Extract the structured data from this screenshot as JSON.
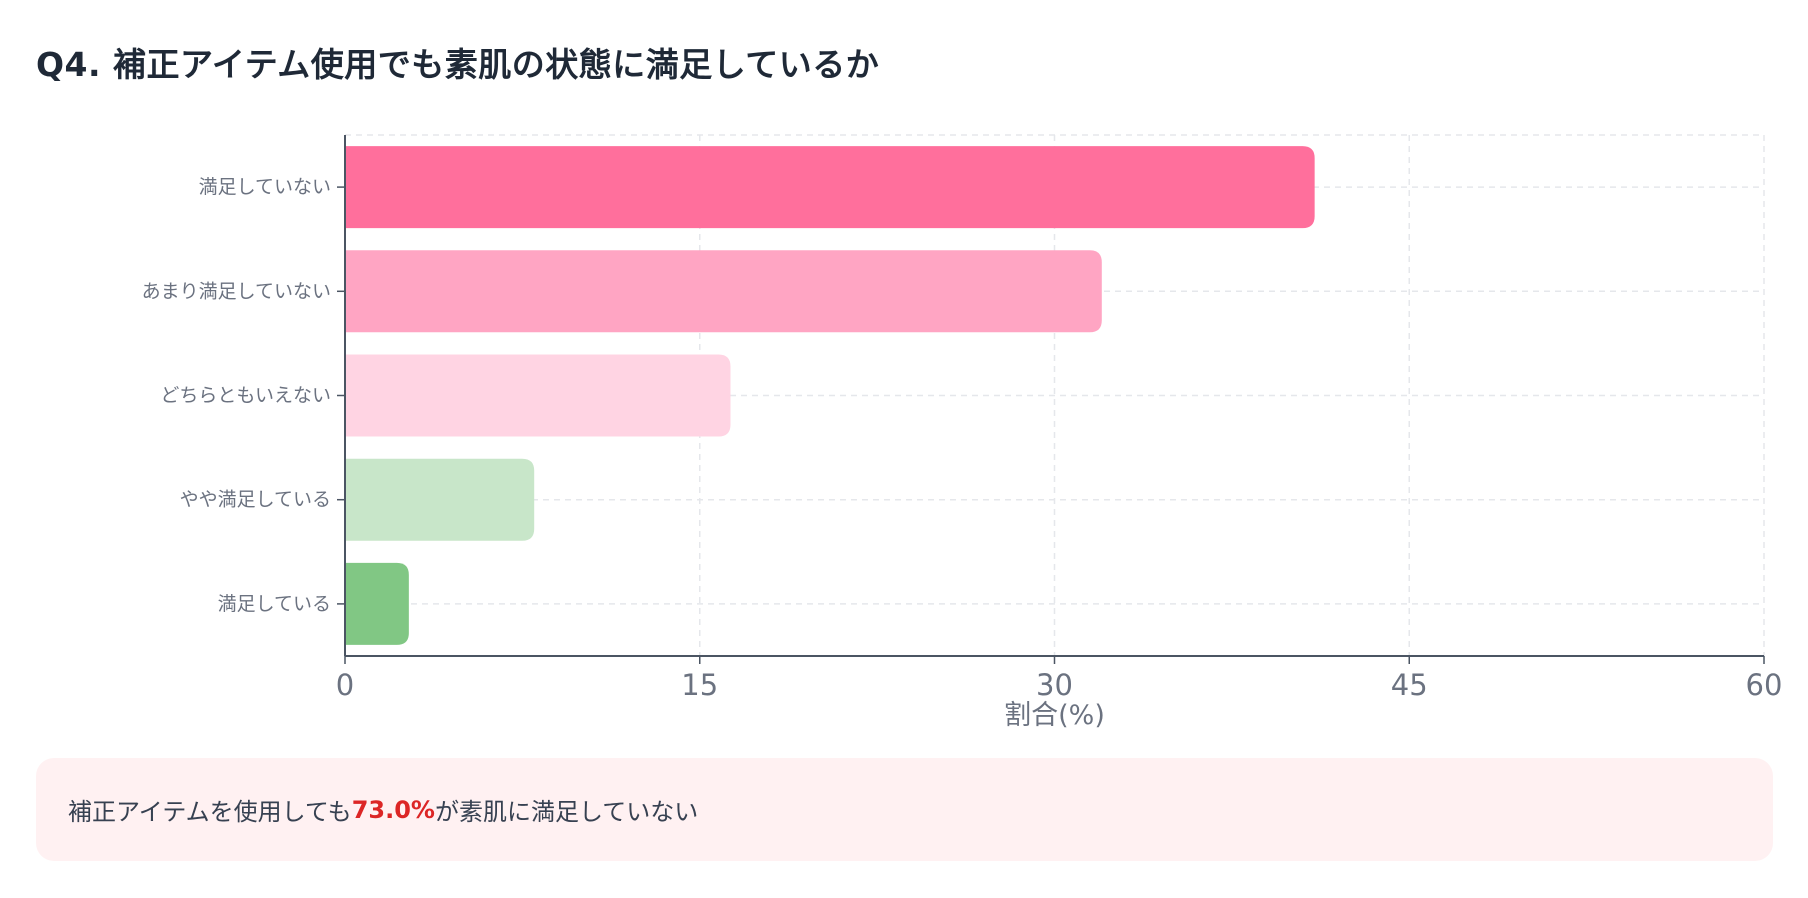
{
  "page": {
    "title": "Q4. 補正アイテム使用でも素肌の状態に満足しているか"
  },
  "chart_data": {
    "type": "bar",
    "orientation": "horizontal",
    "title": "Q4. 補正アイテム使用でも素肌の状態に満足しているか",
    "xlabel": "割合(%)",
    "ylabel": "",
    "categories": [
      "満足していない",
      "あまり満足していない",
      "どちらともいえない",
      "やや満足している",
      "満足している"
    ],
    "values": [
      41.0,
      32.0,
      16.3,
      8.0,
      2.7
    ],
    "colors": [
      "#ff6f9c",
      "#ffa5c3",
      "#ffd4e3",
      "#c8e6c9",
      "#81c784"
    ],
    "xlim": [
      0,
      60
    ],
    "xticks": [
      "0",
      "15",
      "30",
      "45",
      "60"
    ],
    "grid": true,
    "legend": "none"
  },
  "callout": {
    "prefix": "補正アイテムを使用しても",
    "highlight": "73.0%",
    "suffix": "が素肌に満足していない",
    "highlight_color": "#dc2626"
  }
}
